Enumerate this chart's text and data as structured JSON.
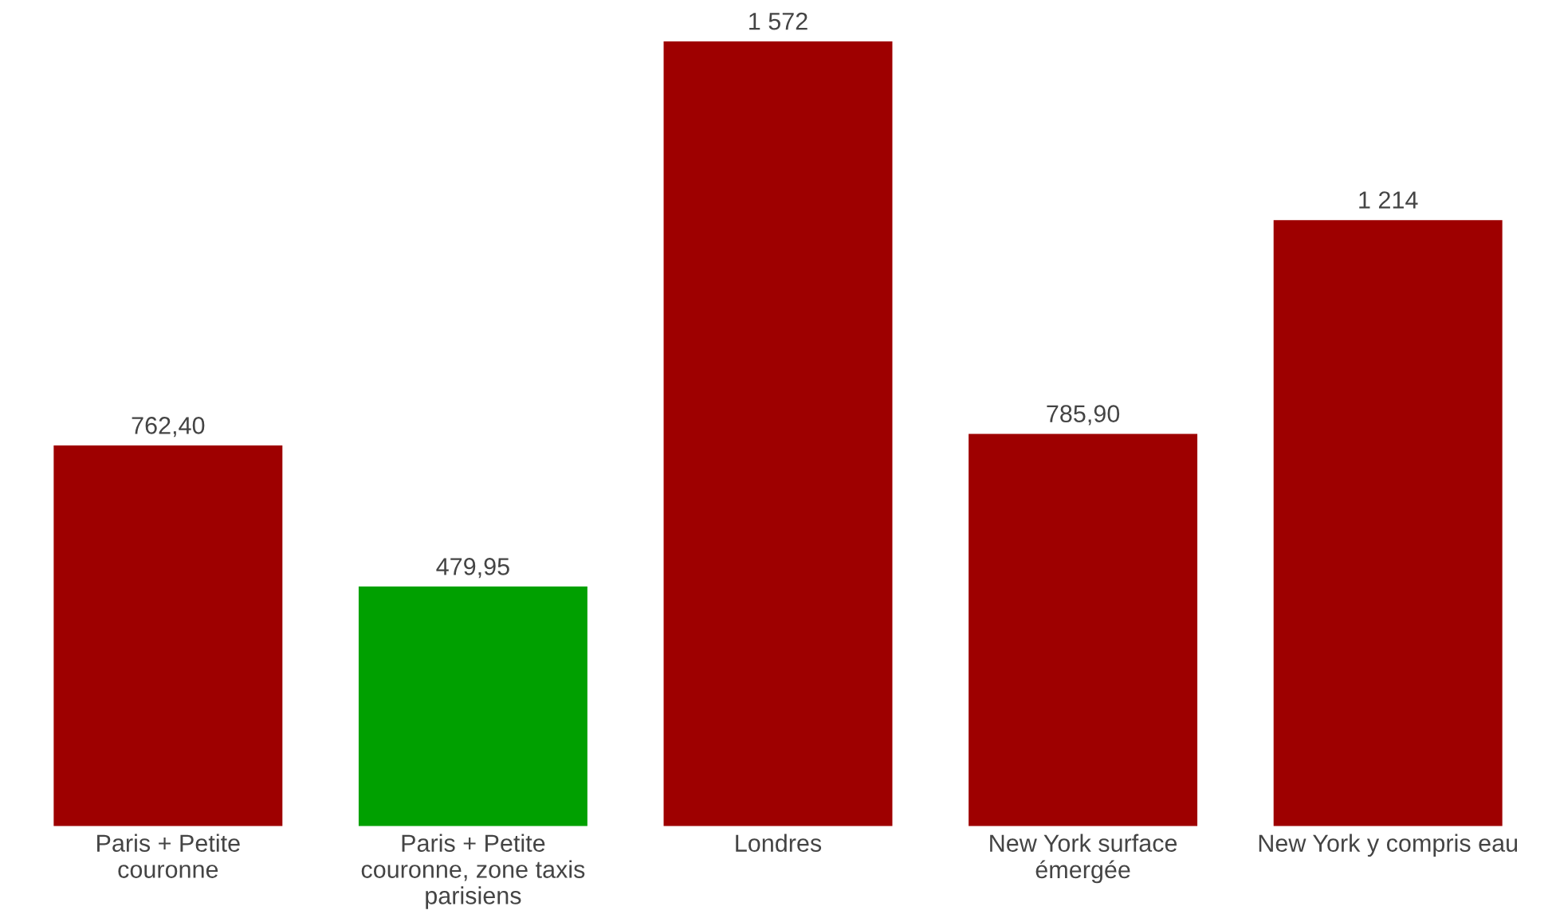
{
  "chart_data": {
    "type": "bar",
    "categories": [
      "Paris + Petite couronne",
      "Paris + Petite couronne, zone taxis parisiens",
      "Londres",
      "New York surface émergée",
      "New York y compris eau"
    ],
    "values": [
      762.4,
      479.95,
      1572,
      785.9,
      1214
    ],
    "colors": [
      "#9e0000",
      "#00a000",
      "#9e0000",
      "#9e0000",
      "#9e0000"
    ],
    "value_labels": [
      "762,40",
      "479,95",
      "1 572",
      "785,90",
      "1 214"
    ],
    "grid": false,
    "legend": false
  }
}
